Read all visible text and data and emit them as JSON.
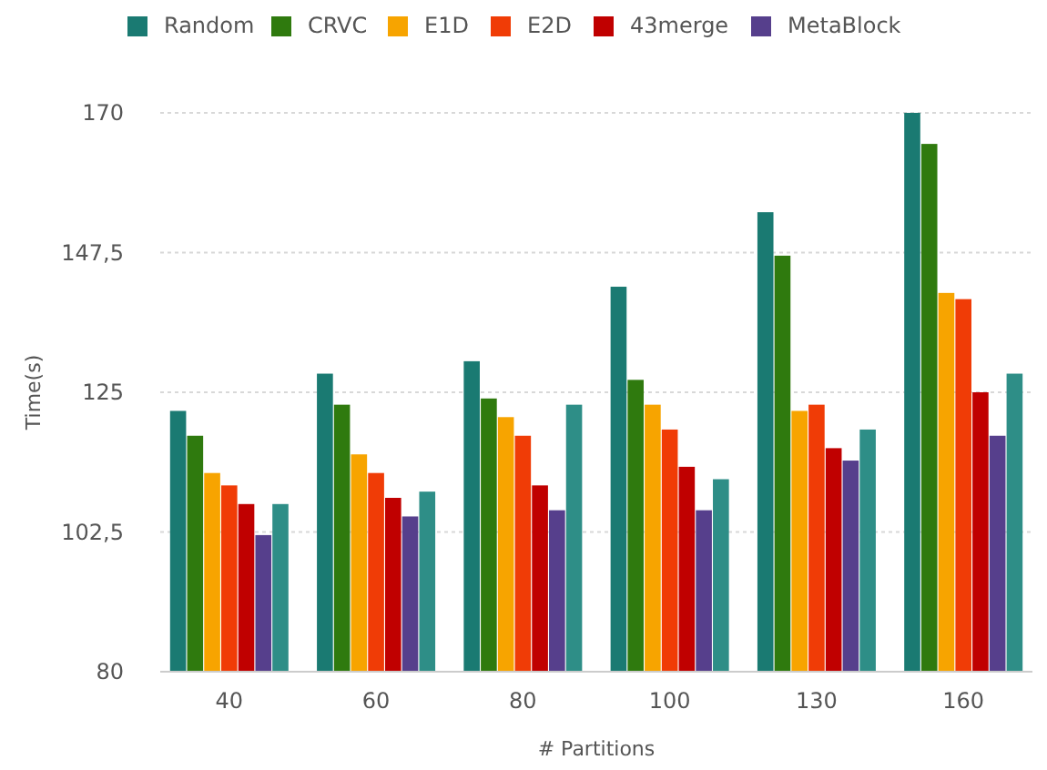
{
  "chart_data": {
    "type": "bar",
    "xlabel": "# Partitions",
    "ylabel": "Time(s)",
    "categories": [
      "40",
      "60",
      "80",
      "100",
      "130",
      "160"
    ],
    "series": [
      {
        "name": "Random",
        "color": "#1a7a72",
        "values": [
          122,
          128,
          130,
          142,
          154,
          170
        ]
      },
      {
        "name": "CRVC",
        "color": "#2f7a0e",
        "values": [
          118,
          123,
          124,
          127,
          147,
          165
        ]
      },
      {
        "name": "E1D",
        "color": "#f7a400",
        "values": [
          112,
          115,
          121,
          123,
          122,
          141
        ]
      },
      {
        "name": "E2D",
        "color": "#f03c06",
        "values": [
          110,
          112,
          118,
          119,
          123,
          140
        ]
      },
      {
        "name": "43merge",
        "color": "#c00000",
        "values": [
          107,
          108,
          110,
          113,
          116,
          125
        ]
      },
      {
        "name": "MetaBlock",
        "color": "#563f8c",
        "values": [
          102,
          105,
          106,
          106,
          114,
          118
        ]
      },
      {
        "color": "#2e8e87",
        "values": [
          107,
          109,
          123,
          111,
          119,
          128
        ]
      }
    ],
    "ylim": [
      80,
      170
    ],
    "yticks": [
      80,
      {
        "value": 102.5,
        "label": "102,5"
      },
      125,
      {
        "value": 147.5,
        "label": "147,5"
      },
      170
    ],
    "grid": "y",
    "legend": "top left"
  }
}
